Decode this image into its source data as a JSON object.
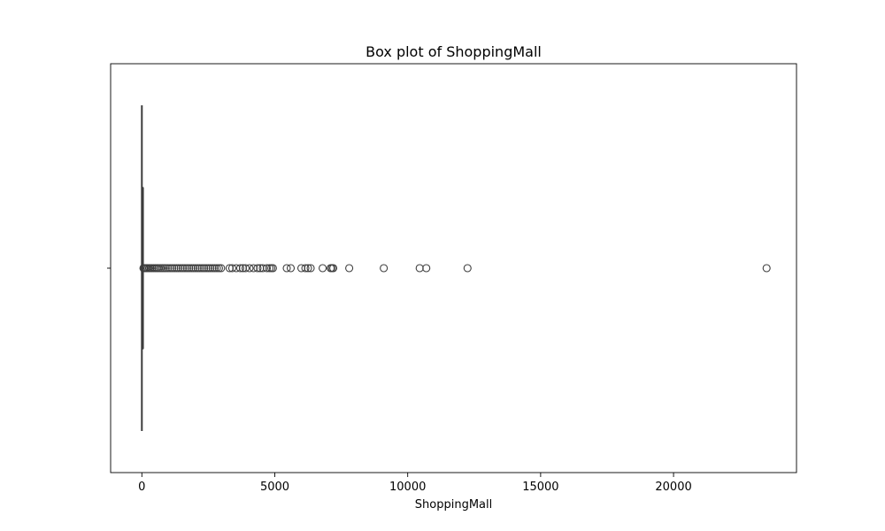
{
  "chart_data": {
    "type": "box",
    "title": "Box plot of ShoppingMall",
    "xlabel": "ShoppingMall",
    "ylabel": "",
    "xlim": [
      -1175,
      24625
    ],
    "xticks": [
      0,
      5000,
      10000,
      15000,
      20000
    ],
    "xtick_labels": [
      "0",
      "5000",
      "10000",
      "15000",
      "20000"
    ],
    "orientation": "horizontal",
    "grid": false,
    "series": [
      {
        "whisker_low": 0,
        "q1": 0,
        "median": 0,
        "q3": 20,
        "whisker_high": 50,
        "outliers": [
          60,
          90,
          130,
          170,
          220,
          270,
          320,
          380,
          440,
          500,
          560,
          620,
          690,
          760,
          830,
          900,
          980,
          1060,
          1140,
          1220,
          1300,
          1380,
          1460,
          1540,
          1620,
          1700,
          1780,
          1860,
          1940,
          2020,
          2100,
          2180,
          2260,
          2340,
          2420,
          2500,
          2580,
          2660,
          2740,
          2820,
          2900,
          2980,
          3300,
          3400,
          3550,
          3700,
          3800,
          3900,
          4050,
          4200,
          4350,
          4450,
          4550,
          4700,
          4800,
          4870,
          4930,
          5450,
          5600,
          6000,
          6150,
          6250,
          6350,
          6800,
          7100,
          7150,
          7200,
          7800,
          9100,
          10450,
          10700,
          12250,
          23500
        ]
      }
    ],
    "colors": {
      "line": "#3d3d3d",
      "axes": "#000000",
      "background": "#ffffff"
    }
  }
}
